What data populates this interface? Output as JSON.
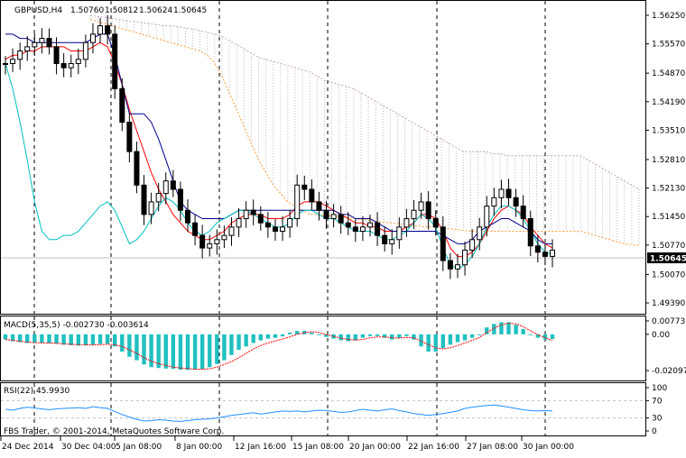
{
  "chart_data": [
    {
      "type": "candlestick",
      "panel": "price",
      "symbol_label": "GBPUSD,H4",
      "ohlc_header": [
        "1.50760",
        "1.50812",
        "1.50624",
        "1.50645"
      ],
      "y_ticks": [
        "1.56250",
        "1.55570",
        "1.54870",
        "1.54190",
        "1.53510",
        "1.52810",
        "1.52130",
        "1.51450",
        "1.50770",
        "1.50070",
        "1.49390"
      ],
      "ylim": [
        1.4939,
        1.5625
      ],
      "current_price": "1.50645",
      "x_ticks": [
        "24 Dec 2014",
        "30 Dec 04:00",
        "5 Jan 08:00",
        "8 Jan 00:00",
        "12 Jan 16:00",
        "15 Jan 08:00",
        "20 Jan 00:00",
        "22 Jan 16:00",
        "27 Jan 08:00",
        "30 Jan 00:00"
      ],
      "series": [
        {
          "kind": "candles",
          "close": [
            1.551,
            1.552,
            1.554,
            1.555,
            1.556,
            1.557,
            1.555,
            1.551,
            1.55,
            1.551,
            1.552,
            1.556,
            1.558,
            1.56,
            1.558,
            1.545,
            1.537,
            1.53,
            1.522,
            1.515,
            1.518,
            1.52,
            1.523,
            1.521,
            1.516,
            1.513,
            1.51,
            1.507,
            1.508,
            1.509,
            1.51,
            1.512,
            1.514,
            1.516,
            1.515,
            1.513,
            1.512,
            1.511,
            1.512,
            1.514,
            1.522,
            1.521,
            1.518,
            1.516,
            1.514,
            1.515,
            1.513,
            1.512,
            1.511,
            1.512,
            1.513,
            1.51,
            1.508,
            1.509,
            1.512,
            1.514,
            1.516,
            1.518,
            1.514,
            1.512,
            1.504,
            1.502,
            1.503,
            1.5065,
            1.509,
            1.512,
            1.517,
            1.519,
            1.521,
            1.519,
            1.517,
            1.514,
            1.5075,
            1.506,
            1.505,
            1.5065
          ]
        },
        {
          "kind": "line",
          "color": "#ff0000",
          "values": [
            1.552,
            1.553,
            1.553,
            1.554,
            1.554,
            1.555,
            1.555,
            1.555,
            1.555,
            1.554,
            1.554,
            1.554,
            1.555,
            1.556,
            1.555,
            1.551,
            1.546,
            1.54,
            1.535,
            1.53,
            1.525,
            1.521,
            1.518,
            1.515,
            1.513,
            1.511,
            1.51,
            1.509,
            1.509,
            1.51,
            1.511,
            1.513,
            1.514,
            1.515,
            1.515,
            1.515,
            1.514,
            1.514,
            1.514,
            1.515,
            1.517,
            1.518,
            1.518,
            1.518,
            1.517,
            1.516,
            1.515,
            1.514,
            1.513,
            1.513,
            1.512,
            1.512,
            1.511,
            1.511,
            1.511,
            1.512,
            1.513,
            1.515,
            1.515,
            1.514,
            1.511,
            1.507,
            1.505,
            1.505,
            1.506,
            1.508,
            1.511,
            1.514,
            1.516,
            1.517,
            1.516,
            1.515,
            1.512,
            1.51,
            1.508,
            1.507
          ]
        },
        {
          "kind": "line",
          "color": "#00008b",
          "values": [
            1.558,
            1.558,
            1.557,
            1.557,
            1.556,
            1.556,
            1.556,
            1.556,
            1.556,
            1.556,
            1.556,
            1.556,
            1.557,
            1.558,
            1.558,
            1.553,
            1.546,
            1.539,
            1.539,
            1.539,
            1.537,
            1.533,
            1.528,
            1.523,
            1.518,
            1.516,
            1.515,
            1.514,
            1.514,
            1.514,
            1.514,
            1.515,
            1.516,
            1.516,
            1.516,
            1.516,
            1.516,
            1.516,
            1.516,
            1.516,
            1.516,
            1.516,
            1.516,
            1.516,
            1.516,
            1.516,
            1.515,
            1.515,
            1.514,
            1.514,
            1.514,
            1.513,
            1.512,
            1.511,
            1.511,
            1.511,
            1.511,
            1.511,
            1.511,
            1.511,
            1.51,
            1.509,
            1.508,
            1.508,
            1.509,
            1.511,
            1.512,
            1.513,
            1.514,
            1.514,
            1.513,
            1.512,
            1.511,
            1.509,
            1.508,
            1.508
          ]
        },
        {
          "kind": "line",
          "color": "#00bfbf",
          "values": [
            1.551,
            1.545,
            1.537,
            1.528,
            1.518,
            1.511,
            1.509,
            1.509,
            1.51,
            1.51,
            1.511,
            1.513,
            1.515,
            1.517,
            1.518,
            1.516,
            1.512,
            1.508,
            1.509,
            1.511,
            1.514,
            1.517,
            1.519,
            1.518,
            1.516,
            1.513,
            1.511,
            1.51,
            1.511,
            1.513,
            1.514,
            1.515,
            1.516,
            1.516,
            1.515,
            1.514,
            1.513,
            1.512,
            1.512,
            1.513,
            1.515,
            1.516,
            1.516,
            1.515,
            1.514,
            1.514,
            1.513,
            1.512,
            1.511,
            1.511,
            1.511,
            1.51,
            1.509,
            1.509,
            1.51,
            1.511,
            1.513,
            1.515,
            1.514,
            1.512,
            1.507,
            1.503,
            1.502,
            1.503,
            1.505,
            1.508,
            1.512,
            1.515,
            1.517,
            1.517,
            1.516,
            1.514,
            1.511,
            1.508,
            1.506,
            1.5055
          ]
        },
        {
          "kind": "cloud",
          "color": "#b0a0b8",
          "upper": [
            1.5625,
            1.5622,
            1.562,
            1.5618,
            1.5615,
            1.5612,
            1.561,
            1.5608,
            1.5605,
            1.5603,
            1.56,
            1.56,
            1.5598,
            1.5595,
            1.5592,
            1.5588,
            1.5585,
            1.558,
            1.5575,
            1.5565,
            1.5555,
            1.5545,
            1.5535,
            1.5525,
            1.552,
            1.5515,
            1.551,
            1.5505,
            1.55,
            1.5495,
            1.549,
            1.548,
            1.547,
            1.5465,
            1.546,
            1.5455,
            1.545,
            1.544,
            1.543,
            1.542,
            1.541,
            1.54,
            1.539,
            1.538,
            1.537,
            1.536,
            1.535,
            1.534,
            1.533,
            1.532,
            1.531,
            1.53,
            1.53,
            1.53,
            1.53,
            1.5295,
            1.5295,
            1.529,
            1.529,
            1.529,
            1.529,
            1.529,
            1.529,
            1.529,
            1.529,
            1.529,
            1.529,
            1.529,
            1.528,
            1.527,
            1.526,
            1.525,
            1.524,
            1.523,
            1.522,
            1.521
          ],
          "lower": [
            1.5615,
            1.561,
            1.5605,
            1.56,
            1.5595,
            1.559,
            1.5585,
            1.558,
            1.5575,
            1.557,
            1.5565,
            1.556,
            1.5555,
            1.555,
            1.5545,
            1.554,
            1.553,
            1.551,
            1.548,
            1.544,
            1.54,
            1.536,
            1.532,
            1.528,
            1.525,
            1.522,
            1.52,
            1.518,
            1.517,
            1.516,
            1.515,
            1.515,
            1.5148,
            1.5146,
            1.5145,
            1.5143,
            1.514,
            1.5138,
            1.5136,
            1.5134,
            1.5132,
            1.513,
            1.5128,
            1.5126,
            1.5124,
            1.5122,
            1.512,
            1.512,
            1.5118,
            1.5116,
            1.5114,
            1.5112,
            1.511,
            1.511,
            1.511,
            1.511,
            1.511,
            1.511,
            1.511,
            1.511,
            1.511,
            1.511,
            1.511,
            1.511,
            1.511,
            1.511,
            1.511,
            1.511,
            1.5105,
            1.51,
            1.5095,
            1.509,
            1.5085,
            1.508,
            1.5078,
            1.5076
          ]
        }
      ]
    },
    {
      "type": "histogram",
      "panel": "macd",
      "label": "MACD(5,35,5) -0.002730 -0.003614",
      "y_ticks": [
        "0.007737",
        "0.00",
        "-0.020975"
      ],
      "ylim": [
        -0.020975,
        0.007737
      ],
      "series": [
        {
          "kind": "bars",
          "color": "#20c0c0",
          "values": [
            -0.003,
            -0.004,
            -0.0045,
            -0.005,
            -0.005,
            -0.005,
            -0.0052,
            -0.0055,
            -0.006,
            -0.0063,
            -0.0065,
            -0.0064,
            -0.006,
            -0.0056,
            -0.0055,
            -0.007,
            -0.01,
            -0.013,
            -0.015,
            -0.0175,
            -0.019,
            -0.0195,
            -0.0198,
            -0.02,
            -0.0205,
            -0.0206,
            -0.0205,
            -0.02,
            -0.019,
            -0.0172,
            -0.015,
            -0.012,
            -0.009,
            -0.007,
            -0.005,
            -0.0035,
            -0.0025,
            -0.002,
            -0.0012,
            0.001,
            0.002,
            0.002,
            0.001,
            -0.0005,
            -0.0015,
            -0.0025,
            -0.0035,
            -0.004,
            -0.0035,
            -0.002,
            -0.001,
            -0.001,
            -0.002,
            -0.003,
            -0.002,
            -0.001,
            -0.003,
            -0.007,
            -0.01,
            -0.01,
            -0.008,
            -0.006,
            -0.0045,
            -0.0035,
            -0.002,
            0.0,
            0.004,
            0.006,
            0.007,
            0.007,
            0.0055,
            0.003,
            0.0,
            -0.002,
            -0.003,
            -0.0027
          ]
        },
        {
          "kind": "signal",
          "color": "#ff0000",
          "values": [
            -0.003,
            -0.0035,
            -0.004,
            -0.0045,
            -0.0048,
            -0.005,
            -0.005,
            -0.0052,
            -0.0055,
            -0.0058,
            -0.006,
            -0.006,
            -0.0062,
            -0.006,
            -0.0058,
            -0.006,
            -0.007,
            -0.009,
            -0.011,
            -0.0135,
            -0.0155,
            -0.017,
            -0.018,
            -0.019,
            -0.0195,
            -0.0198,
            -0.0202,
            -0.0202,
            -0.02,
            -0.019,
            -0.0175,
            -0.0158,
            -0.0135,
            -0.011,
            -0.0085,
            -0.0065,
            -0.005,
            -0.0038,
            -0.0028,
            -0.0015,
            0.0,
            0.001,
            0.0015,
            0.001,
            -0.0002,
            -0.0012,
            -0.0022,
            -0.003,
            -0.0033,
            -0.003,
            -0.002,
            -0.0015,
            -0.0015,
            -0.002,
            -0.0022,
            -0.0018,
            -0.002,
            -0.004,
            -0.006,
            -0.0078,
            -0.0085,
            -0.0078,
            -0.0065,
            -0.005,
            -0.0035,
            -0.0018,
            0.001,
            0.0035,
            0.0055,
            0.0065,
            0.006,
            0.0045,
            0.002,
            -0.0002,
            -0.002,
            -0.0036
          ]
        }
      ]
    },
    {
      "type": "line",
      "panel": "rsi",
      "label": "RSI(22) 45.9930",
      "y_ticks": [
        "100",
        "70",
        "30",
        "0"
      ],
      "ylim": [
        0,
        100
      ],
      "levels": [
        70,
        30
      ],
      "series": [
        {
          "kind": "line",
          "color": "#1e90ff",
          "values": [
            50,
            48,
            52,
            55,
            53,
            51,
            49,
            51,
            52,
            53,
            54,
            52,
            56,
            54,
            52,
            45,
            38,
            32,
            27,
            23,
            24,
            26,
            25,
            23,
            22,
            24,
            26,
            27,
            28,
            30,
            33,
            36,
            38,
            40,
            42,
            39,
            41,
            44,
            46,
            45,
            46,
            44,
            46,
            48,
            47,
            45,
            43,
            44,
            47,
            50,
            48,
            46,
            49,
            51,
            47,
            44,
            40,
            38,
            36,
            38,
            40,
            43,
            46,
            52,
            55,
            57,
            59,
            60,
            58,
            55,
            52,
            49,
            47,
            46,
            47,
            46
          ]
        }
      ]
    }
  ],
  "footer_text": "FBS Trader, © 2001-2014, MetaQuotes Software Corp."
}
